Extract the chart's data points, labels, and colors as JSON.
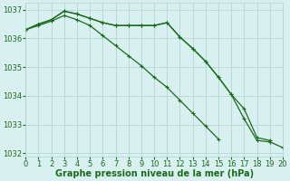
{
  "x": [
    0,
    1,
    2,
    3,
    4,
    5,
    6,
    7,
    8,
    9,
    10,
    11,
    12,
    13,
    14,
    15,
    16,
    17,
    18,
    19,
    20
  ],
  "line1": [
    1036.3,
    1036.5,
    1036.65,
    1036.95,
    1036.85,
    1036.7,
    1036.55,
    1036.45,
    1036.45,
    1036.45,
    1036.45,
    1036.55,
    1036.05,
    1035.65,
    1035.2,
    1034.65,
    1034.05,
    1033.55,
    1032.55,
    1032.45,
    null
  ],
  "line2": [
    1036.3,
    1036.5,
    1036.65,
    1036.95,
    1036.85,
    1036.7,
    1036.55,
    1036.45,
    1036.45,
    1036.45,
    1036.45,
    1036.55,
    1036.05,
    1035.65,
    1035.2,
    1034.65,
    1034.05,
    1033.2,
    1032.45,
    1032.4,
    1032.2
  ],
  "line3": [
    1036.3,
    1036.45,
    1036.6,
    1036.8,
    1036.65,
    1036.45,
    1036.1,
    1035.75,
    1035.4,
    1035.05,
    1034.65,
    1034.3,
    1033.85,
    1033.4,
    1032.95,
    1032.5,
    null,
    null,
    null,
    null,
    null
  ],
  "ylim": [
    1031.9,
    1037.25
  ],
  "xlim": [
    0,
    20
  ],
  "yticks": [
    1032,
    1033,
    1034,
    1035,
    1036,
    1037
  ],
  "xticks": [
    0,
    1,
    2,
    3,
    4,
    5,
    6,
    7,
    8,
    9,
    10,
    11,
    12,
    13,
    14,
    15,
    16,
    17,
    18,
    19,
    20
  ],
  "line_color": "#1a6b1a",
  "marker": "+",
  "marker_size": 3,
  "bg_color": "#d8f0f0",
  "grid_color": "#b0d0d0",
  "xlabel": "Graphe pression niveau de la mer (hPa)",
  "xlabel_fontsize": 7,
  "tick_fontsize": 6,
  "line_width": 0.9
}
